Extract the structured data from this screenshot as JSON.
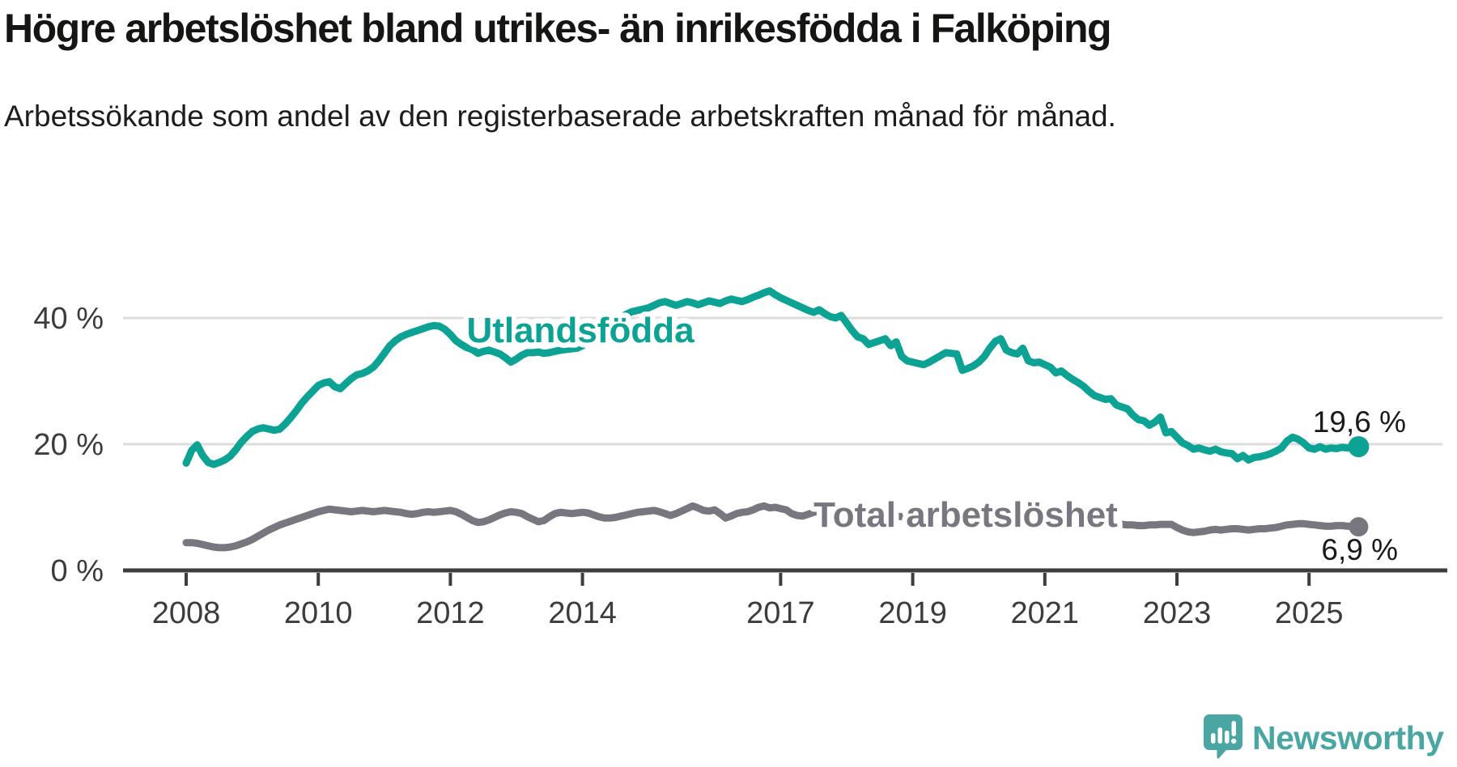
{
  "title": "Högre arbetslöshet bland utrikes- än inrikesfödda i Falköping",
  "subtitle": "Arbetssökande som andel av den registerbaserade arbetskraften månad för månad.",
  "branding": {
    "logo_text": "Newsworthy",
    "logo_icon": "speech-bubble-with-bar-chart-and-exclamation",
    "logo_color": "#4aa6a2"
  },
  "colors": {
    "foreign_born_line": "#0ca294",
    "total_line": "#787780",
    "value_label": "#1a1a1a",
    "axis_text": "#3c3c3c",
    "gridline": "#dddddd",
    "axis_line": "#3d3d3d",
    "background": "#ffffff"
  },
  "chart_data": {
    "type": "line",
    "title": "Högre arbetslöshet bland utrikes- än inrikesfödda i Falköping",
    "subtitle": "Arbetssökande som andel av den registerbaserade arbetskraften månad för månad.",
    "x_unit": "month",
    "x_start_year": 2008,
    "x_start_month": 1,
    "x_end_year": 2025,
    "x_end_month": 10,
    "grid": true,
    "y_axis": {
      "tick_labels": [
        "0 %",
        "20 %",
        "40 %"
      ],
      "tick_values": [
        0,
        20,
        40
      ],
      "range": [
        0,
        46
      ]
    },
    "x_axis": {
      "tick_labels": [
        "2008",
        "2010",
        "2012",
        "2014",
        "2017",
        "2019",
        "2021",
        "2023",
        "2025"
      ],
      "tick_values": [
        2008,
        2010,
        2012,
        2014,
        2017,
        2019,
        2021,
        2023,
        2025
      ]
    },
    "series": [
      {
        "name": "Utlandsfödda",
        "color": "#0ca294",
        "end_label": "19,6 %",
        "end_value": 19.6,
        "values": [
          17.0,
          19.0,
          19.9,
          18.2,
          17.1,
          16.8,
          17.1,
          17.5,
          18.1,
          19.1,
          20.3,
          21.2,
          22.0,
          22.4,
          22.6,
          22.4,
          22.2,
          22.4,
          23.2,
          24.2,
          25.3,
          26.5,
          27.5,
          28.4,
          29.3,
          29.7,
          29.9,
          29.1,
          28.8,
          29.6,
          30.4,
          31.0,
          31.2,
          31.6,
          32.2,
          33.2,
          34.4,
          35.6,
          36.4,
          37.0,
          37.4,
          37.7,
          38.0,
          38.3,
          38.6,
          38.8,
          38.7,
          38.2,
          37.4,
          36.4,
          35.8,
          35.3,
          35.0,
          34.4,
          34.7,
          34.9,
          34.6,
          34.3,
          33.7,
          33.0,
          33.5,
          34.1,
          34.5,
          34.5,
          34.6,
          34.4,
          34.5,
          34.7,
          34.9,
          35.0,
          35.1,
          35.2,
          35.6,
          36.3,
          37.1,
          37.9,
          38.4,
          38.9,
          39.5,
          40.1,
          40.6,
          41.0,
          41.2,
          41.4,
          41.6,
          42.0,
          42.4,
          42.6,
          42.3,
          42.0,
          42.3,
          42.6,
          42.4,
          42.1,
          42.4,
          42.7,
          42.5,
          42.3,
          42.7,
          43.0,
          42.8,
          42.6,
          42.9,
          43.3,
          43.6,
          44.0,
          44.3,
          43.7,
          43.2,
          42.8,
          42.4,
          42.0,
          41.6,
          41.2,
          40.9,
          41.3,
          40.7,
          40.2,
          40.0,
          40.4,
          39.2,
          38.0,
          37.0,
          36.7,
          35.8,
          36.1,
          36.4,
          36.7,
          35.6,
          36.2,
          33.9,
          33.2,
          33.0,
          32.8,
          32.6,
          33.0,
          33.5,
          34.0,
          34.5,
          34.4,
          34.3,
          31.7,
          32.0,
          32.4,
          33.0,
          33.9,
          35.2,
          36.3,
          36.7,
          34.9,
          34.5,
          34.3,
          35.2,
          33.2,
          32.9,
          33.0,
          32.6,
          32.2,
          31.3,
          31.6,
          30.9,
          30.3,
          29.8,
          29.2,
          28.4,
          27.7,
          27.4,
          27.1,
          27.2,
          26.2,
          25.9,
          25.6,
          24.6,
          23.9,
          23.7,
          23.0,
          23.5,
          24.3,
          21.8,
          22.0,
          21.1,
          20.2,
          19.8,
          19.2,
          19.4,
          19.1,
          18.9,
          19.2,
          18.8,
          18.6,
          18.5,
          17.7,
          18.2,
          17.5,
          17.9,
          18.0,
          18.2,
          18.5,
          18.9,
          19.4,
          20.5,
          21.1,
          20.8,
          20.2,
          19.4,
          19.2,
          19.6,
          19.2,
          19.4,
          19.3,
          19.5,
          19.4,
          19.5,
          19.6
        ]
      },
      {
        "name": "Total arbetslöshet",
        "color": "#787780",
        "end_label": "6,9 %",
        "end_value": 6.9,
        "values": [
          4.4,
          4.4,
          4.3,
          4.1,
          3.9,
          3.7,
          3.6,
          3.6,
          3.7,
          3.9,
          4.2,
          4.5,
          4.9,
          5.4,
          5.9,
          6.4,
          6.8,
          7.2,
          7.5,
          7.8,
          8.1,
          8.4,
          8.7,
          9.0,
          9.3,
          9.5,
          9.7,
          9.6,
          9.5,
          9.4,
          9.3,
          9.4,
          9.5,
          9.4,
          9.3,
          9.4,
          9.5,
          9.4,
          9.3,
          9.2,
          9.0,
          8.9,
          9.0,
          9.2,
          9.3,
          9.2,
          9.3,
          9.4,
          9.5,
          9.3,
          8.9,
          8.4,
          7.9,
          7.6,
          7.7,
          8.0,
          8.4,
          8.8,
          9.1,
          9.3,
          9.2,
          9.0,
          8.5,
          8.1,
          7.7,
          7.9,
          8.5,
          9.0,
          9.2,
          9.1,
          9.0,
          9.1,
          9.2,
          9.1,
          8.8,
          8.5,
          8.3,
          8.3,
          8.4,
          8.6,
          8.8,
          9.0,
          9.2,
          9.3,
          9.4,
          9.5,
          9.3,
          9.0,
          8.7,
          9.0,
          9.4,
          9.8,
          10.2,
          9.9,
          9.5,
          9.4,
          9.6,
          9.0,
          8.3,
          8.6,
          9.0,
          9.2,
          9.3,
          9.6,
          10.0,
          10.2,
          9.9,
          10.0,
          9.8,
          9.6,
          9.0,
          8.7,
          8.6,
          8.9,
          9.2,
          9.4,
          9.6,
          9.5,
          9.3,
          9.2,
          9.0,
          8.8,
          8.7,
          8.6,
          8.5,
          8.4,
          8.5,
          8.6,
          8.7,
          8.6,
          8.5,
          8.4,
          8.3,
          8.2,
          8.1,
          8.2,
          8.3,
          8.4,
          8.5,
          8.4,
          8.3,
          8.2,
          8.1,
          8.2,
          8.3,
          8.5,
          8.8,
          9.0,
          9.1,
          9.0,
          8.9,
          8.8,
          8.7,
          8.6,
          8.5,
          8.4,
          8.3,
          8.2,
          8.1,
          8.0,
          7.9,
          7.8,
          7.7,
          7.6,
          7.5,
          7.5,
          7.4,
          7.4,
          7.4,
          7.3,
          7.3,
          7.2,
          7.2,
          7.1,
          7.1,
          7.2,
          7.2,
          7.3,
          7.3,
          7.3,
          6.8,
          6.4,
          6.1,
          6.0,
          6.1,
          6.2,
          6.4,
          6.5,
          6.4,
          6.5,
          6.6,
          6.6,
          6.5,
          6.4,
          6.5,
          6.6,
          6.6,
          6.7,
          6.8,
          7.0,
          7.2,
          7.3,
          7.4,
          7.4,
          7.3,
          7.2,
          7.1,
          7.0,
          7.0,
          7.1,
          7.1,
          7.0,
          7.0,
          6.9
        ]
      }
    ],
    "legend_position": "inline-labels"
  }
}
